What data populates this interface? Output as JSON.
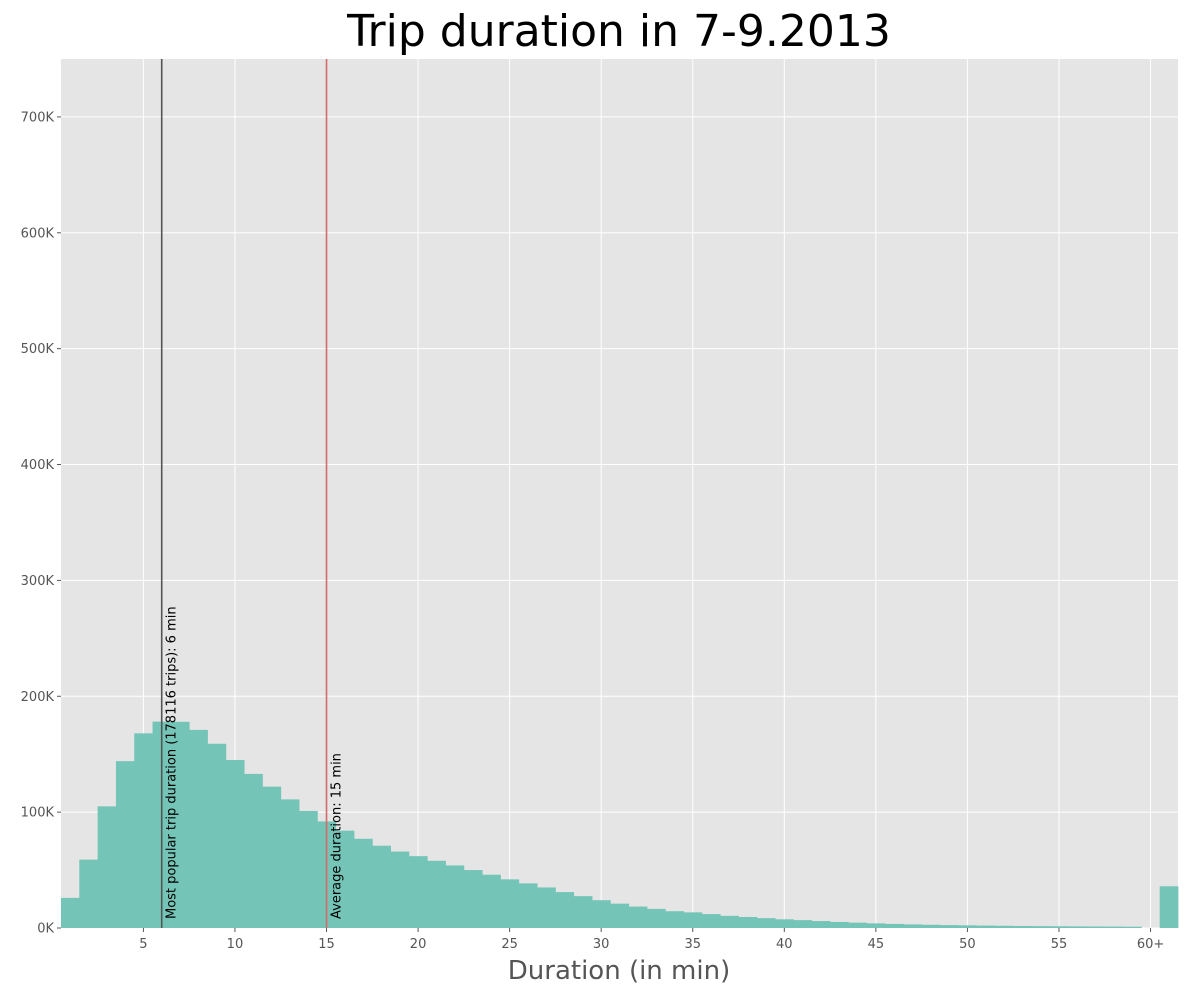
{
  "chart_data": {
    "type": "bar",
    "title": "Trip duration in 7-9.2013",
    "xlabel": "Duration (in min)",
    "ylabel": "",
    "ylim": [
      0,
      750000
    ],
    "xlim": [
      0.5,
      61.5
    ],
    "grid": true,
    "x_ticks": [
      {
        "value": 5,
        "label": "5"
      },
      {
        "value": 10,
        "label": "10"
      },
      {
        "value": 15,
        "label": "15"
      },
      {
        "value": 20,
        "label": "20"
      },
      {
        "value": 25,
        "label": "25"
      },
      {
        "value": 30,
        "label": "30"
      },
      {
        "value": 35,
        "label": "35"
      },
      {
        "value": 40,
        "label": "40"
      },
      {
        "value": 45,
        "label": "45"
      },
      {
        "value": 50,
        "label": "50"
      },
      {
        "value": 55,
        "label": "55"
      },
      {
        "value": 60,
        "label": "60+"
      }
    ],
    "y_ticks": [
      {
        "value": 0,
        "label": "0K"
      },
      {
        "value": 100000,
        "label": "100K"
      },
      {
        "value": 200000,
        "label": "200K"
      },
      {
        "value": 300000,
        "label": "300K"
      },
      {
        "value": 400000,
        "label": "400K"
      },
      {
        "value": 500000,
        "label": "500K"
      },
      {
        "value": 600000,
        "label": "600K"
      },
      {
        "value": 700000,
        "label": "700K"
      }
    ],
    "bar_color": "#74c5b7",
    "categories": [
      "1",
      "2",
      "3",
      "4",
      "5",
      "6",
      "7",
      "8",
      "9",
      "10",
      "11",
      "12",
      "13",
      "14",
      "15",
      "16",
      "17",
      "18",
      "19",
      "20",
      "21",
      "22",
      "23",
      "24",
      "25",
      "26",
      "27",
      "28",
      "29",
      "30",
      "31",
      "32",
      "33",
      "34",
      "35",
      "36",
      "37",
      "38",
      "39",
      "40",
      "41",
      "42",
      "43",
      "44",
      "45",
      "46",
      "47",
      "48",
      "49",
      "50",
      "51",
      "52",
      "53",
      "54",
      "55",
      "56",
      "57",
      "58",
      "59",
      "60+"
    ],
    "x": [
      1,
      2,
      3,
      4,
      5,
      6,
      7,
      8,
      9,
      10,
      11,
      12,
      13,
      14,
      15,
      16,
      17,
      18,
      19,
      20,
      21,
      22,
      23,
      24,
      25,
      26,
      27,
      28,
      29,
      30,
      31,
      32,
      33,
      34,
      35,
      36,
      37,
      38,
      39,
      40,
      41,
      42,
      43,
      44,
      45,
      46,
      47,
      48,
      49,
      50,
      51,
      52,
      53,
      54,
      55,
      56,
      57,
      58,
      59,
      61
    ],
    "values": [
      26000,
      59000,
      105000,
      144000,
      168000,
      178116,
      178000,
      171000,
      159000,
      145000,
      133000,
      122000,
      111000,
      101000,
      92000,
      84000,
      77000,
      71000,
      66000,
      62000,
      58000,
      54000,
      50000,
      46000,
      42000,
      38500,
      35000,
      31000,
      27500,
      24000,
      21000,
      18500,
      16500,
      14500,
      13500,
      12000,
      10500,
      9500,
      8500,
      7500,
      6800,
      6000,
      5200,
      4600,
      4000,
      3500,
      3100,
      2800,
      2500,
      2300,
      2100,
      1900,
      1750,
      1600,
      1500,
      1400,
      1300,
      1200,
      1100,
      36000
    ],
    "reference_lines": [
      {
        "name": "mode-line",
        "x": 6,
        "color": "#555555",
        "label": "Most popular trip duration (178116 trips):  6 min"
      },
      {
        "name": "mean-line",
        "x": 15,
        "color": "#d46a6a",
        "label": "Average duration: 15 min"
      }
    ]
  }
}
